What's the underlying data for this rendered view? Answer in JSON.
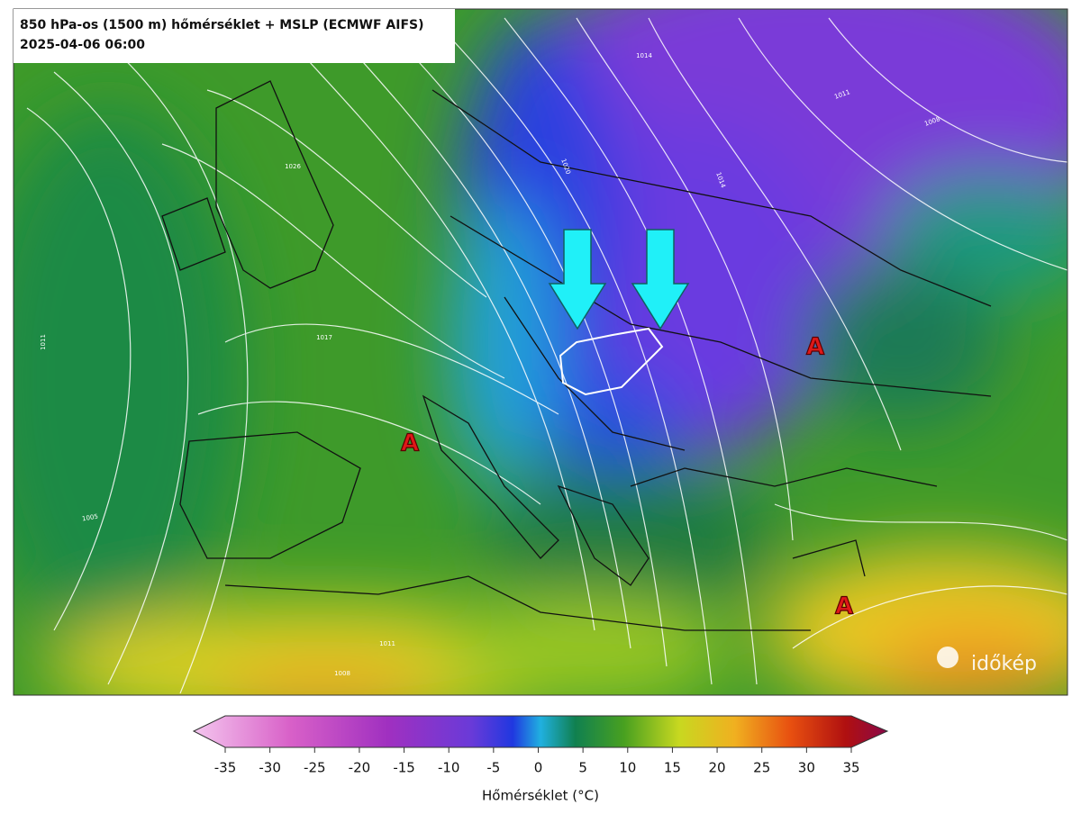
{
  "header": {
    "title": "850 hPa-os (1500 m) hőmérséklet + MSLP (ECMWF AIFS)",
    "date": "2025-04-06 06:00"
  },
  "map": {
    "high_labels": [
      "A",
      "A",
      "A"
    ],
    "pressure_labels": [
      "1014",
      "1011",
      "1008",
      "1020",
      "1014",
      "1026",
      "1017",
      "1011",
      "1005",
      "1011",
      "1008"
    ]
  },
  "colorbar": {
    "label": "Hőmérséklet (°C)",
    "range": [
      -35,
      35
    ],
    "ticks": [
      -35,
      -30,
      -25,
      -20,
      -15,
      -10,
      -5,
      0,
      5,
      10,
      15,
      20,
      25,
      30,
      35
    ]
  },
  "logo": "időkép"
}
